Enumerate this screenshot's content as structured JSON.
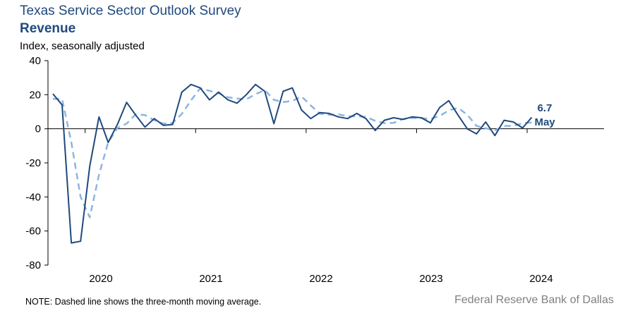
{
  "header": {
    "title": "Texas Service Sector Outlook Survey",
    "subtitle": "Revenue",
    "ylabel": "Index, seasonally adjusted"
  },
  "footer": {
    "note": "NOTE: Dashed line shows the three-month moving average.",
    "source": "Federal Reserve Bank of Dallas"
  },
  "colors": {
    "index": "#1f497d",
    "moving_average": "#8db4e2"
  },
  "chart_data": {
    "type": "line",
    "title": "Texas Service Sector Outlook Survey",
    "subtitle": "Revenue",
    "ylabel": "Index, seasonally adjusted",
    "ylim": [
      -80,
      40
    ],
    "yticks": [
      40,
      20,
      0,
      -20,
      -40,
      -60,
      -80
    ],
    "xtick_labels": [
      "2020",
      "2021",
      "2022",
      "2023",
      "2024"
    ],
    "x_start": "2019-09",
    "x_end": "2024-05",
    "grid": false,
    "last_value_label": "6.7",
    "last_month_label": "May",
    "series": [
      {
        "style": "solid",
        "values": [
          20.5,
          14.0,
          -67.0,
          -66.0,
          -22.0,
          7.0,
          -8.0,
          2.5,
          15.5,
          8.0,
          1.0,
          6.0,
          2.0,
          2.5,
          21.5,
          26.0,
          24.0,
          17.0,
          21.5,
          17.0,
          15.0,
          20.0,
          26.0,
          22.0,
          3.0,
          22.0,
          24.0,
          11.0,
          6.0,
          9.5,
          9.0,
          7.0,
          6.0,
          9.0,
          6.0,
          -1.0,
          5.0,
          6.5,
          5.5,
          7.0,
          6.5,
          3.5,
          12.5,
          16.5,
          8.0,
          0.0,
          -3.0,
          4.0,
          -4.0,
          5.0,
          4.0,
          0.5,
          6.7
        ]
      },
      {
        "style": "dashed",
        "values": [
          17.5,
          17.5,
          -8.0,
          -40.0,
          -52.0,
          -27.0,
          -8.0,
          0.5,
          3.0,
          8.5,
          8.0,
          5.0,
          3.0,
          3.5,
          8.7,
          16.7,
          23.8,
          22.3,
          20.8,
          18.5,
          17.8,
          17.3,
          20.3,
          22.7,
          17.0,
          15.7,
          16.3,
          19.0,
          13.7,
          8.8,
          8.2,
          8.5,
          7.3,
          7.3,
          7.0,
          4.7,
          3.3,
          3.5,
          5.7,
          6.3,
          6.3,
          5.7,
          7.5,
          10.8,
          12.3,
          8.2,
          1.7,
          0.3,
          -1.0,
          1.7,
          1.7,
          3.2,
          3.7
        ]
      }
    ]
  }
}
